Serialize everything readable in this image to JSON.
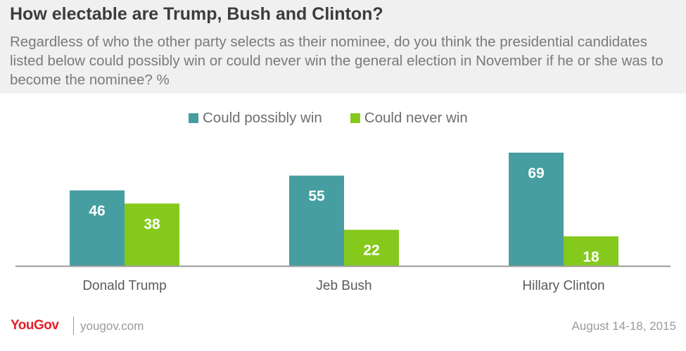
{
  "header": {
    "title": "How electable are Trump, Bush and Clinton?",
    "subtitle": "Regardless of who the other party selects as their nominee, do you think the presidential candidates listed below could possibly win or could never win the general election in November if he or she was to become the nominee? %"
  },
  "colors": {
    "possibly": "#469ea1",
    "never": "#86c91d",
    "axis": "#9a9a9a",
    "brand": "#e5202b"
  },
  "chart_data": {
    "type": "bar",
    "title": "How electable are Trump, Bush and Clinton?",
    "categories": [
      "Donald Trump",
      "Jeb Bush",
      "Hillary Clinton"
    ],
    "series": [
      {
        "name": "Could possibly win",
        "values": [
          46,
          55,
          69
        ]
      },
      {
        "name": "Could never win",
        "values": [
          38,
          22,
          18
        ]
      }
    ],
    "ylim": [
      0,
      80
    ],
    "grid": false,
    "legend": "top-center"
  },
  "footer": {
    "logo": "YouGov",
    "site": "yougov.com",
    "date": "August 14-18, 2015"
  }
}
